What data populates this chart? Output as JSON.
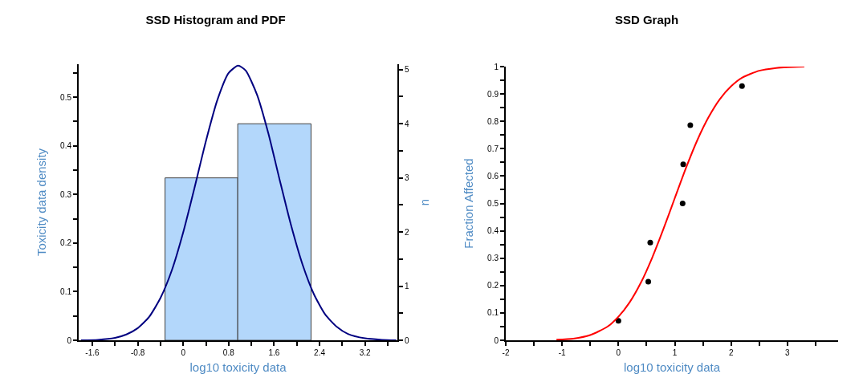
{
  "chart_data": [
    {
      "type": "histogram",
      "title": "SSD Histogram and PDF",
      "xlabel": "log10 toxicity data",
      "ylabel": "Toxicity data density",
      "y2label": "n",
      "bins": [
        -0.32,
        0.96,
        2.25
      ],
      "xlim": [
        -1.84,
        3.77
      ],
      "xticks": [
        -1.6,
        {
          "value": -1.2,
          "label": null
        },
        -0.8,
        {
          "value": -0.4,
          "label": null
        },
        0,
        {
          "value": 0.4,
          "label": null
        },
        0.8,
        {
          "value": 1.2,
          "label": null
        },
        1.6,
        {
          "value": 2.0,
          "label": null
        },
        2.4,
        {
          "value": 2.8,
          "label": null
        },
        3.2,
        {
          "value": 3.6,
          "label": null
        }
      ],
      "ylim": [
        0,
        0.568
      ],
      "yticks": [
        0,
        {
          "value": 0.05,
          "label": null
        },
        0.1,
        {
          "value": 0.15,
          "label": null
        },
        0.2,
        {
          "value": 0.25,
          "label": null
        },
        0.3,
        {
          "value": 0.35,
          "label": null
        },
        0.4,
        {
          "value": 0.45,
          "label": null
        },
        0.5,
        {
          "value": 0.55,
          "label": null
        }
      ],
      "y2lim": [
        0,
        5.1
      ],
      "y2ticks": [
        0,
        {
          "value": 0.5,
          "label": null
        },
        1,
        {
          "value": 1.5,
          "label": null
        },
        2,
        {
          "value": 2.5,
          "label": null
        },
        3,
        {
          "value": 3.5,
          "label": null
        },
        4,
        {
          "value": 4.5,
          "label": null
        },
        5
      ],
      "series": [
        {
          "type": "histogram",
          "axis": "y2",
          "color": "#b3d7fb",
          "values": [
            3,
            4
          ]
        },
        {
          "type": "line",
          "color": "#000080",
          "x": [
            -1.8,
            -1.5,
            -1.2,
            -1.0,
            -0.8,
            -0.6,
            -0.4,
            -0.2,
            0,
            0.2,
            0.4,
            0.6,
            0.8,
            0.966,
            1.1,
            1.3,
            1.5,
            1.7,
            1.9,
            2.1,
            2.3,
            2.5,
            2.7,
            2.9,
            3.2,
            3.5,
            3.75
          ],
          "values": [
            0.0,
            0.001,
            0.005,
            0.012,
            0.025,
            0.048,
            0.087,
            0.144,
            0.222,
            0.314,
            0.41,
            0.494,
            0.55,
            0.565,
            0.555,
            0.505,
            0.425,
            0.329,
            0.236,
            0.156,
            0.095,
            0.053,
            0.028,
            0.013,
            0.004,
            0.001,
            0.0
          ]
        }
      ]
    },
    {
      "type": "scatter",
      "title": "SSD Graph",
      "xlabel": "log10 toxicity data",
      "ylabel": "Fraction Affected",
      "xlim": [
        -2,
        3.9
      ],
      "xticks": [
        -2,
        {
          "value": -1.5,
          "label": null
        },
        -1,
        {
          "value": -0.5,
          "label": null
        },
        0,
        {
          "value": 0.5,
          "label": null
        },
        1,
        {
          "value": 1.5,
          "label": null
        },
        2,
        {
          "value": 2.5,
          "label": null
        },
        3,
        {
          "value": 3.5,
          "label": null
        }
      ],
      "ylim": [
        0,
        1
      ],
      "yticks": [
        0,
        {
          "value": 0.05,
          "label": null
        },
        0.1,
        {
          "value": 0.15,
          "label": null
        },
        0.2,
        {
          "value": 0.25,
          "label": null
        },
        0.3,
        {
          "value": 0.35,
          "label": null
        },
        0.4,
        {
          "value": 0.45,
          "label": null
        },
        0.5,
        {
          "value": 0.55,
          "label": null
        },
        0.6,
        {
          "value": 0.65,
          "label": null
        },
        0.7,
        {
          "value": 0.75,
          "label": null
        },
        0.8,
        {
          "value": 0.85,
          "label": null
        },
        0.9,
        {
          "value": 0.95,
          "label": null
        },
        1
      ],
      "series": [
        {
          "type": "scatter",
          "marker": "circle",
          "color": "#000000",
          "x": [
            0,
            0.53,
            0.565,
            1.14,
            1.15,
            1.276,
            2.194
          ],
          "values": [
            0.071,
            0.214,
            0.357,
            0.5,
            0.643,
            0.786,
            0.929
          ]
        },
        {
          "type": "line",
          "color": "#ff0000",
          "x": [
            -1.1,
            -0.8,
            -0.5,
            -0.2,
            0,
            0.2,
            0.4,
            0.6,
            0.8,
            1.0,
            1.2,
            1.4,
            1.6,
            1.8,
            2.0,
            2.2,
            2.5,
            2.8,
            3.0,
            3.3
          ],
          "values": [
            0.002,
            0.006,
            0.019,
            0.049,
            0.086,
            0.139,
            0.211,
            0.302,
            0.407,
            0.519,
            0.63,
            0.731,
            0.815,
            0.881,
            0.928,
            0.96,
            0.985,
            0.995,
            0.998,
            1.0
          ]
        }
      ]
    }
  ]
}
